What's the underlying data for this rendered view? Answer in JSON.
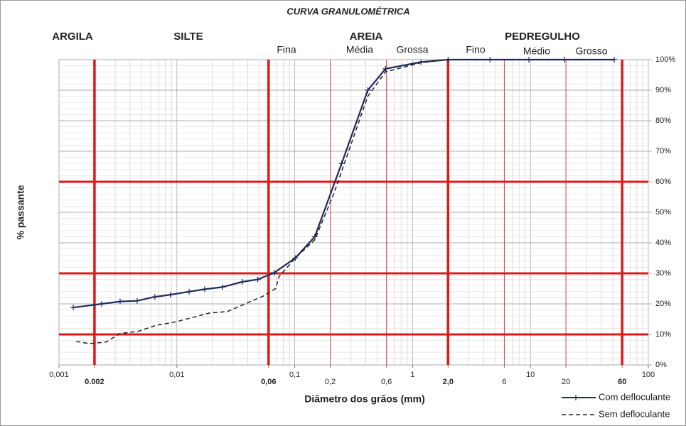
{
  "chart_data": {
    "type": "line",
    "title": "CURVA GRANULOMÉTRICA",
    "xlabel": "Diâmetro dos grãos  (mm)",
    "ylabel": "% passante",
    "log_x": true,
    "minor_grid": true,
    "xlim": [
      0.001,
      100
    ],
    "ylim": [
      0,
      100
    ],
    "xticks": [
      {
        "value": 0.001,
        "label": "0,001"
      },
      {
        "value": 0.002,
        "label": "0.002"
      },
      {
        "value": 0.01,
        "label": "0,01"
      },
      {
        "value": 0.06,
        "label": "0,06"
      },
      {
        "value": 0.1,
        "label": "0,1"
      },
      {
        "value": 0.2,
        "label": "0,2"
      },
      {
        "value": 0.6,
        "label": "0,6"
      },
      1,
      {
        "value": 2,
        "label": "2,0"
      },
      6,
      10,
      20,
      60,
      100
    ],
    "yticks": [
      {
        "value": 0,
        "label": "0%"
      },
      {
        "value": 10,
        "label": "10%"
      },
      {
        "value": 20,
        "label": "20%"
      },
      {
        "value": 30,
        "label": "30%"
      },
      {
        "value": 40,
        "label": "40%"
      },
      {
        "value": 50,
        "label": "50%"
      },
      {
        "value": 60,
        "label": "60%"
      },
      {
        "value": 70,
        "label": "70%"
      },
      {
        "value": 80,
        "label": "80%"
      },
      {
        "value": 90,
        "label": "90%"
      },
      {
        "value": 100,
        "label": "100%"
      }
    ],
    "boundaries": [
      0.002,
      0.06,
      2,
      60
    ],
    "sub_boundaries": [
      0.2,
      0.6,
      6,
      20
    ],
    "hlines": [
      10,
      30,
      60
    ],
    "zones": [
      {
        "name": "ARGILA"
      },
      {
        "name": "SILTE"
      },
      {
        "name": "AREIA",
        "subzones": [
          "Fina",
          "Média",
          "Grossa"
        ]
      },
      {
        "name": "PEDREGULHO",
        "subzones": [
          "Fino",
          "Médio",
          "Grosso"
        ]
      }
    ],
    "series": [
      {
        "name": "Com defloculante",
        "color": "#1f2a5e",
        "line_style": "solid",
        "marker": "+",
        "x": [
          0.00132,
          0.0023,
          0.0033,
          0.0046,
          0.0065,
          0.0088,
          0.0127,
          0.0172,
          0.0243,
          0.0358,
          0.0486,
          0.0669,
          0.101,
          0.148,
          0.25,
          0.417,
          0.59,
          1.18,
          2.0,
          4.54,
          9.7,
          19.5,
          51.4
        ],
        "values": [
          18.8,
          20,
          20.8,
          21,
          22.3,
          23,
          24,
          24.8,
          25.5,
          27.2,
          28,
          30.2,
          35,
          42,
          66,
          90,
          97,
          99.2,
          100,
          100,
          100,
          100,
          100
        ]
      },
      {
        "name": "Sem defloculante",
        "color": "#222222",
        "line_style": "dashed",
        "x": [
          0.0014,
          0.0018,
          0.0025,
          0.0033,
          0.0047,
          0.0067,
          0.0095,
          0.0134,
          0.0189,
          0.0268,
          0.0379,
          0.0536,
          0.0688,
          0.0737,
          0.101,
          0.148,
          0.214,
          0.417,
          0.59,
          1.18,
          2.0,
          5.21,
          51.4
        ],
        "values": [
          7.7,
          7,
          7.5,
          10.3,
          11,
          13,
          14,
          15.5,
          17,
          17.5,
          20,
          22.5,
          25,
          29,
          35,
          41,
          56,
          88,
          96,
          99,
          100,
          100,
          100
        ]
      }
    ]
  }
}
